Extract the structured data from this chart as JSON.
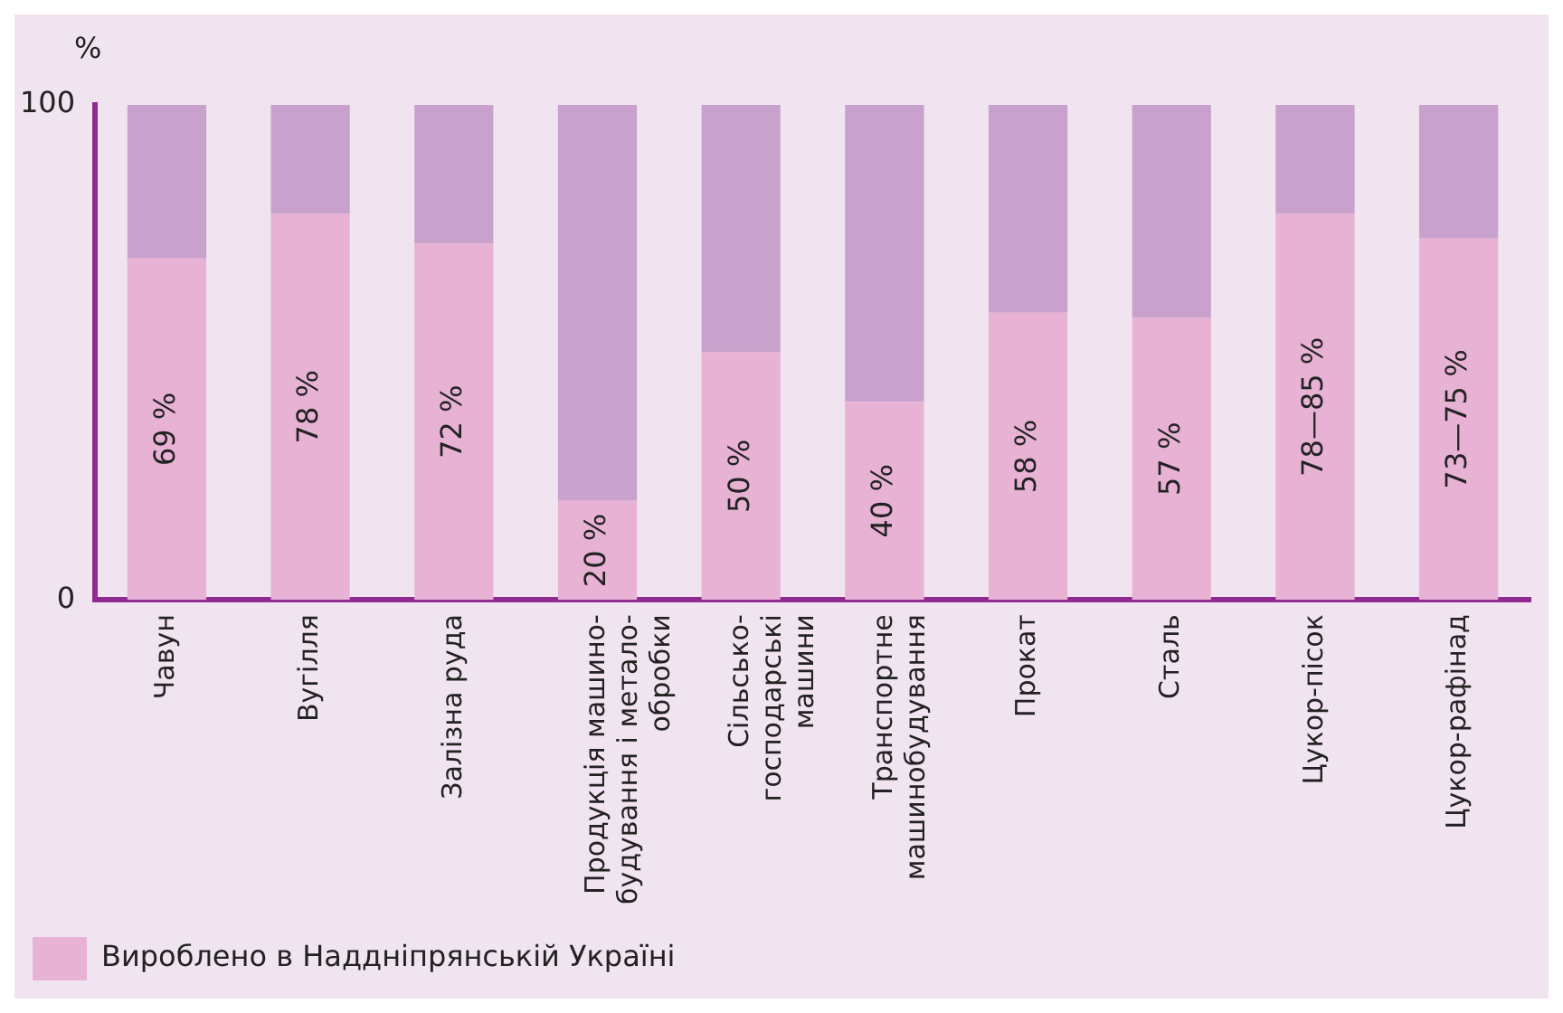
{
  "chart_data": {
    "type": "bar",
    "stacked": true,
    "ylabel": "%",
    "ylim": [
      0,
      100
    ],
    "yticks": [
      0,
      100
    ],
    "grid": false,
    "legend": "bottom",
    "categories": [
      "Чавун",
      "Вугілля",
      "Залізна руда",
      "Продукція машино-\nбудування і метало-\nобробки",
      "Сільсько-\nгосподарські\nмашини",
      "Транспортне\nмашинобудування",
      "Прокат",
      "Сталь",
      "Цукор-пісок",
      "Цукор-рафінад"
    ],
    "series": [
      {
        "name": "Вироблено в Наддніпрянській Україні",
        "color": "#e8b2d4",
        "values": [
          69,
          78,
          72,
          20,
          50,
          40,
          58,
          57,
          78,
          73
        ],
        "value_labels": [
          "69 %",
          "78 %",
          "72 %",
          "20 %",
          "50 %",
          "40 %",
          "58 %",
          "57 %",
          "78—85 %",
          "73—75 %"
        ]
      },
      {
        "color": "#c8a2cc",
        "values": [
          31,
          22,
          28,
          80,
          50,
          60,
          42,
          43,
          22,
          27
        ]
      }
    ]
  }
}
